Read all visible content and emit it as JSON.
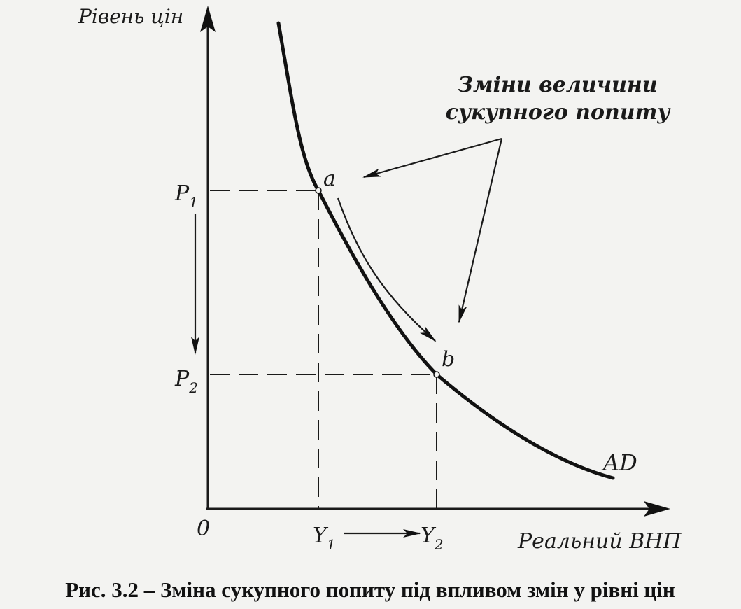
{
  "diagram": {
    "y_axis_label": "Рівень цін",
    "x_axis_label": "Реальний ВНП",
    "origin_label": "0",
    "p1_label": "P",
    "p1_sub": "1",
    "p2_label": "P",
    "p2_sub": "2",
    "y1_label": "Y",
    "y1_sub": "1",
    "y2_label": "Y",
    "y2_sub": "2",
    "point_a": "a",
    "point_b": "b",
    "curve_label": "AD",
    "annotation_line1": "Зміни величини",
    "annotation_line2": "сукупного попиту"
  },
  "caption": "Рис. 3.2 – Зміна сукупного попиту під впливом змін у рівні цін"
}
